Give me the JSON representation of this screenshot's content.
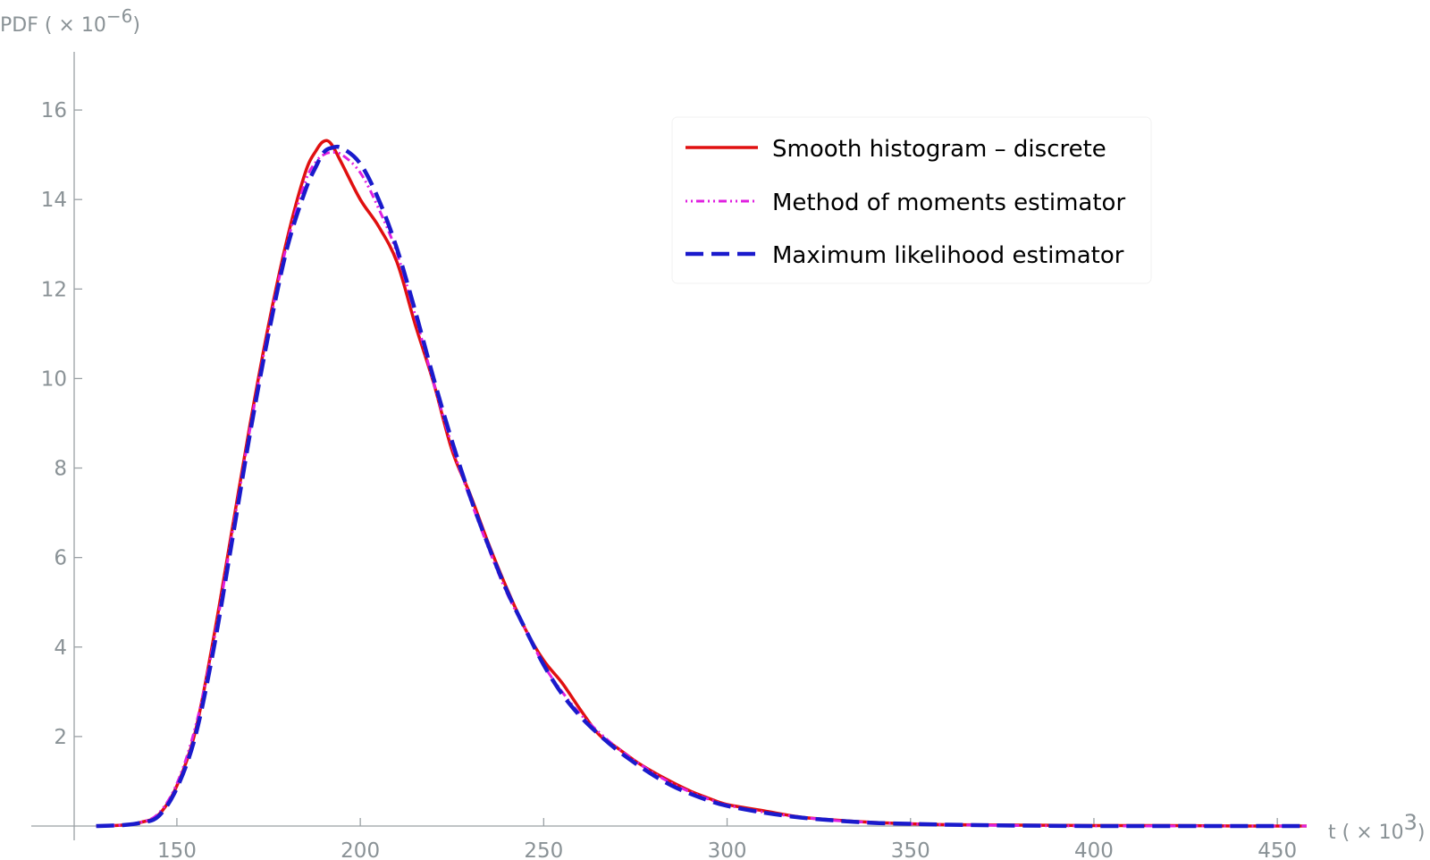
{
  "chart_data": {
    "type": "line",
    "ylabel": "PDF ( × 10",
    "ylabel_exp": "−6",
    "ylabel_close": ")",
    "xlabel": "t ( × 10",
    "xlabel_exp": "3",
    "xlabel_close": ")",
    "xlim": [
      122,
      458
    ],
    "ylim": [
      0,
      17.3
    ],
    "x_ticks": [
      150,
      200,
      250,
      300,
      350,
      400,
      450
    ],
    "y_ticks": [
      2,
      4,
      6,
      8,
      10,
      12,
      14,
      16
    ],
    "grid": false,
    "legend_position": "top-right",
    "series": [
      {
        "name": "Smooth histogram – discrete",
        "color": "#e01010",
        "style": "solid",
        "x": [
          128,
          135,
          140,
          145,
          150,
          155,
          160,
          165,
          170,
          175,
          180,
          185,
          188,
          190,
          192,
          195,
          200,
          205,
          210,
          215,
          220,
          225,
          230,
          235,
          240,
          245,
          250,
          255,
          260,
          265,
          270,
          275,
          280,
          285,
          290,
          295,
          300,
          310,
          320,
          330,
          340,
          350,
          360,
          380,
          400,
          420,
          440,
          450,
          458
        ],
        "y": [
          0.0,
          0.02,
          0.08,
          0.25,
          0.9,
          2.1,
          4.2,
          6.6,
          9.0,
          11.2,
          13.1,
          14.6,
          15.1,
          15.3,
          15.25,
          14.8,
          14.0,
          13.4,
          12.6,
          11.2,
          9.9,
          8.4,
          7.4,
          6.3,
          5.3,
          4.4,
          3.7,
          3.2,
          2.6,
          2.05,
          1.75,
          1.45,
          1.2,
          0.98,
          0.78,
          0.62,
          0.48,
          0.34,
          0.2,
          0.13,
          0.08,
          0.05,
          0.03,
          0.02,
          0.01,
          0.01,
          0.0,
          0.0,
          0.0
        ]
      },
      {
        "name": "Method of moments estimator",
        "color": "#e020e0",
        "style": "dotdash",
        "x": [
          128,
          135,
          140,
          145,
          150,
          155,
          160,
          165,
          170,
          175,
          180,
          185,
          188,
          190,
          192,
          195,
          200,
          205,
          210,
          215,
          220,
          225,
          230,
          235,
          240,
          245,
          250,
          255,
          260,
          265,
          270,
          275,
          280,
          285,
          290,
          295,
          300,
          310,
          320,
          330,
          340,
          350,
          360,
          380,
          400,
          420,
          440,
          450,
          458
        ],
        "y": [
          0.0,
          0.02,
          0.08,
          0.28,
          0.95,
          2.2,
          4.1,
          6.5,
          8.9,
          11.1,
          13.0,
          14.4,
          14.85,
          15.0,
          15.05,
          15.0,
          14.6,
          13.8,
          12.8,
          11.4,
          9.9,
          8.5,
          7.3,
          6.2,
          5.2,
          4.4,
          3.6,
          3.0,
          2.5,
          2.1,
          1.75,
          1.45,
          1.18,
          0.95,
          0.76,
          0.6,
          0.47,
          0.31,
          0.2,
          0.12,
          0.08,
          0.05,
          0.03,
          0.01,
          0.0,
          0.0,
          0.0,
          0.0,
          0.0
        ]
      },
      {
        "name": "Maximum likelihood estimator",
        "color": "#1a1acc",
        "style": "dashed",
        "x": [
          128,
          135,
          140,
          145,
          150,
          155,
          160,
          165,
          170,
          175,
          180,
          185,
          188,
          190,
          192,
          195,
          200,
          205,
          210,
          215,
          220,
          225,
          230,
          235,
          240,
          245,
          250,
          255,
          260,
          265,
          270,
          275,
          280,
          285,
          290,
          295,
          300,
          310,
          320,
          330,
          340,
          350,
          360,
          380,
          400,
          420,
          440,
          450,
          458
        ],
        "y": [
          0.0,
          0.02,
          0.07,
          0.22,
          0.85,
          2.0,
          3.95,
          6.35,
          8.8,
          11.0,
          12.9,
          14.2,
          14.75,
          15.05,
          15.15,
          15.15,
          14.8,
          14.0,
          12.9,
          11.5,
          10.0,
          8.6,
          7.35,
          6.25,
          5.25,
          4.4,
          3.6,
          2.95,
          2.45,
          2.05,
          1.7,
          1.4,
          1.13,
          0.9,
          0.72,
          0.57,
          0.45,
          0.3,
          0.19,
          0.12,
          0.07,
          0.05,
          0.03,
          0.01,
          0.0,
          0.0,
          0.0,
          0.0,
          0.0
        ]
      }
    ]
  }
}
